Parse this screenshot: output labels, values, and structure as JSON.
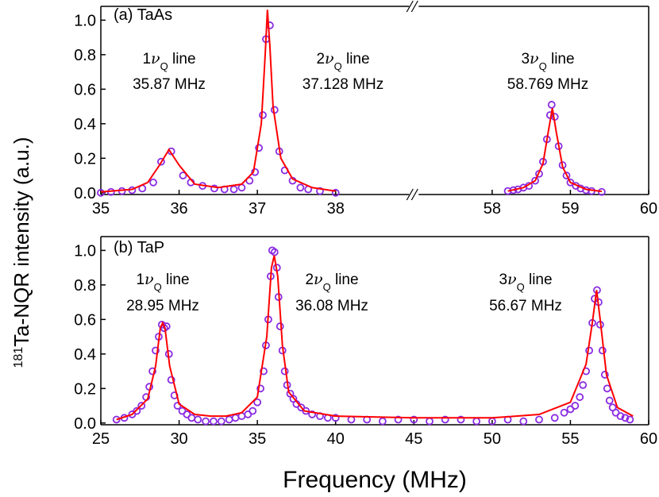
{
  "ylabel_sup": "181",
  "ylabel": "Ta-NQR intensity (a.u.)",
  "xlabel": "Frequency (MHz)",
  "chart_data": [
    {
      "type": "scatter",
      "panel_label": "(a) TaAs",
      "x_segments": [
        {
          "xlim": [
            35,
            39
          ],
          "xticks": [
            35,
            36,
            37,
            38
          ]
        },
        {
          "xlim": [
            57,
            60
          ],
          "xticks": [
            58,
            59,
            60
          ]
        }
      ],
      "ylim": [
        -0.01,
        1.08
      ],
      "yticks": [
        {
          "value": 0,
          "label": "0.0"
        },
        0.2,
        0.4,
        0.6,
        0.8,
        {
          "value": 1,
          "label": "1.0"
        }
      ],
      "annotations": [
        {
          "n": "1",
          "symbol": "ν",
          "sub": "Q",
          "rest": " line",
          "freq": "35.87 MHz"
        },
        {
          "n": "2",
          "symbol": "ν",
          "sub": "Q",
          "rest": " line",
          "freq": "37.128 MHz"
        },
        {
          "n": "3",
          "symbol": "ν",
          "sub": "Q",
          "rest": " line",
          "freq": "58.769 MHz"
        }
      ],
      "series": [
        {
          "style": "markers",
          "color": "#8a2be2",
          "x": [
            35.0,
            35.13,
            35.27,
            35.4,
            35.53,
            35.67,
            35.77,
            35.9,
            36.05,
            36.15,
            36.3,
            36.45,
            36.58,
            36.7,
            36.8,
            36.9,
            36.97,
            37.02,
            37.07,
            37.11,
            37.16,
            37.22,
            37.28,
            37.35,
            37.45,
            37.55,
            37.65,
            37.8,
            38.0,
            58.2,
            58.27,
            58.33,
            58.4,
            58.47,
            58.55,
            58.6,
            58.65,
            58.7,
            58.74,
            58.76,
            58.8,
            58.85,
            58.9,
            58.95,
            59.0,
            59.07,
            59.13,
            59.2,
            59.27,
            59.4
          ],
          "values": [
            0.0,
            0.005,
            0.01,
            0.015,
            0.025,
            0.06,
            0.18,
            0.24,
            0.1,
            0.06,
            0.04,
            0.025,
            0.02,
            0.02,
            0.03,
            0.07,
            0.12,
            0.26,
            0.45,
            0.89,
            0.97,
            0.48,
            0.24,
            0.13,
            0.07,
            0.03,
            0.02,
            0.01,
            0.0,
            0.01,
            0.015,
            0.02,
            0.03,
            0.04,
            0.07,
            0.11,
            0.18,
            0.31,
            0.45,
            0.51,
            0.44,
            0.27,
            0.16,
            0.1,
            0.06,
            0.04,
            0.025,
            0.015,
            0.01,
            0.005
          ]
        },
        {
          "style": "line",
          "color": "#ff0000",
          "x": [
            35,
            35.4,
            35.6,
            35.75,
            35.87,
            36.0,
            36.2,
            36.5,
            36.8,
            36.95,
            37.05,
            37.1,
            37.128,
            37.16,
            37.2,
            37.3,
            37.45,
            37.7,
            38.0
          ],
          "values": [
            0.005,
            0.02,
            0.06,
            0.16,
            0.25,
            0.16,
            0.05,
            0.03,
            0.05,
            0.12,
            0.4,
            0.8,
            1.06,
            0.85,
            0.5,
            0.2,
            0.08,
            0.03,
            0.01
          ]
        },
        {
          "style": "line",
          "color": "#ff0000",
          "x": [
            58.2,
            58.4,
            58.55,
            58.65,
            58.72,
            58.769,
            58.82,
            58.9,
            59.0,
            59.2,
            59.4
          ],
          "values": [
            0.01,
            0.03,
            0.07,
            0.17,
            0.36,
            0.49,
            0.35,
            0.15,
            0.06,
            0.02,
            0.008
          ]
        }
      ]
    },
    {
      "type": "scatter",
      "panel_label": "(b) TaP",
      "x_segments": [
        {
          "xlim": [
            25,
            60
          ],
          "xticks": [
            25,
            30,
            35,
            40,
            45,
            50,
            55,
            60
          ]
        }
      ],
      "ylim": [
        -0.01,
        1.08
      ],
      "yticks": [
        {
          "value": 0,
          "label": "0.0"
        },
        0.2,
        0.4,
        0.6,
        0.8,
        {
          "value": 1,
          "label": "1.0"
        }
      ],
      "annotations": [
        {
          "n": "1",
          "symbol": "ν",
          "sub": "Q",
          "rest": " line",
          "freq": "28.95 MHz"
        },
        {
          "n": "2",
          "symbol": "ν",
          "sub": "Q",
          "rest": " line",
          "freq": "36.08 MHz"
        },
        {
          "n": "3",
          "symbol": "ν",
          "sub": "Q",
          "rest": " line",
          "freq": "56.67 MHz"
        }
      ],
      "series": [
        {
          "style": "markers",
          "color": "#8a2be2",
          "x": [
            26,
            26.5,
            27,
            27.3,
            27.6,
            27.9,
            28.1,
            28.3,
            28.5,
            28.7,
            28.9,
            29.05,
            29.2,
            29.35,
            29.5,
            29.7,
            29.9,
            30.2,
            30.5,
            30.8,
            31.2,
            31.7,
            32.2,
            32.7,
            33.2,
            33.6,
            34.0,
            34.4,
            34.7,
            35.0,
            35.2,
            35.4,
            35.55,
            35.7,
            35.85,
            35.95,
            36.1,
            36.25,
            36.35,
            36.45,
            36.6,
            36.75,
            36.9,
            37.1,
            37.3,
            37.5,
            37.8,
            38.1,
            38.5,
            39,
            39.5,
            40,
            41,
            42,
            43,
            44,
            45,
            46,
            47,
            48,
            49,
            50,
            51,
            52,
            53,
            54,
            54.6,
            55,
            55.3,
            55.6,
            55.8,
            56,
            56.2,
            56.4,
            56.55,
            56.7,
            56.8,
            56.9,
            57.05,
            57.2,
            57.35,
            57.5,
            57.7,
            57.9,
            58.2,
            58.5,
            58.8
          ],
          "values": [
            0.02,
            0.03,
            0.05,
            0.07,
            0.1,
            0.15,
            0.21,
            0.3,
            0.42,
            0.5,
            0.57,
            0.55,
            0.56,
            0.4,
            0.25,
            0.16,
            0.1,
            0.07,
            0.05,
            0.03,
            0.02,
            0.01,
            0.01,
            0.01,
            0.02,
            0.03,
            0.04,
            0.05,
            0.07,
            0.12,
            0.2,
            0.3,
            0.45,
            0.6,
            0.85,
            1.0,
            0.99,
            0.9,
            0.73,
            0.56,
            0.42,
            0.3,
            0.22,
            0.17,
            0.14,
            0.11,
            0.09,
            0.07,
            0.05,
            0.04,
            0.03,
            0.03,
            0.02,
            0.02,
            0.01,
            0.02,
            0.02,
            0.01,
            0.02,
            0.02,
            0.01,
            0.01,
            0.02,
            0.01,
            0.02,
            0.03,
            0.06,
            0.08,
            0.1,
            0.15,
            0.22,
            0.3,
            0.42,
            0.58,
            0.72,
            0.77,
            0.7,
            0.57,
            0.42,
            0.28,
            0.2,
            0.13,
            0.09,
            0.06,
            0.04,
            0.03,
            0.02
          ]
        },
        {
          "style": "line",
          "color": "#ff0000",
          "x": [
            26,
            27,
            28,
            28.5,
            28.8,
            28.95,
            29.1,
            29.4,
            30,
            31,
            32,
            33,
            34,
            35,
            35.6,
            35.9,
            36.08,
            36.3,
            36.6,
            37,
            38,
            40,
            45,
            50,
            53,
            55,
            56,
            56.4,
            56.67,
            56.9,
            57.3,
            58,
            59
          ],
          "values": [
            0.02,
            0.05,
            0.14,
            0.33,
            0.55,
            0.58,
            0.55,
            0.33,
            0.11,
            0.05,
            0.04,
            0.04,
            0.06,
            0.15,
            0.5,
            0.9,
            0.97,
            0.85,
            0.45,
            0.18,
            0.07,
            0.04,
            0.03,
            0.03,
            0.05,
            0.12,
            0.34,
            0.58,
            0.77,
            0.6,
            0.28,
            0.09,
            0.04
          ]
        }
      ]
    }
  ]
}
